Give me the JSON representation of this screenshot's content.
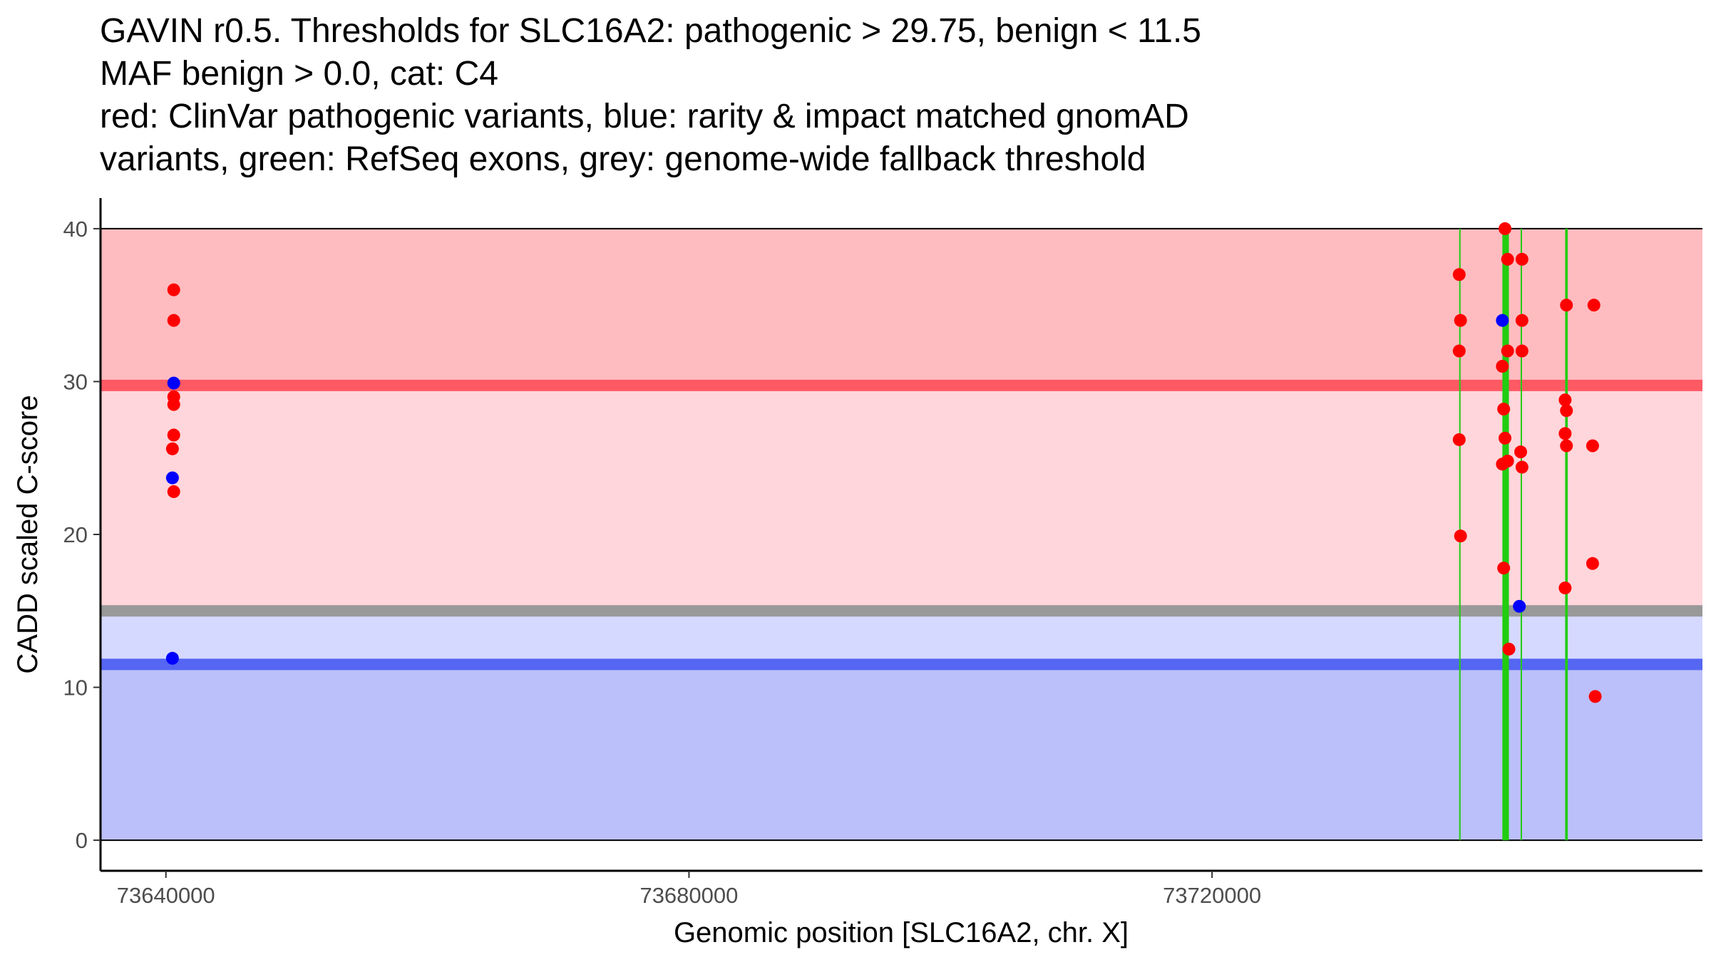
{
  "title_lines": [
    "GAVIN r0.5. Thresholds for SLC16A2: pathogenic > 29.75, benign < 11.5",
    "MAF benign > 0.0, cat: C4",
    "red: ClinVar pathogenic variants, blue: rarity & impact matched gnomAD",
    "variants, green: RefSeq exons, grey: genome-wide fallback threshold"
  ],
  "colors": {
    "patho_zone": "#ffbcc0",
    "patho_mid_zone": "#ffd6db",
    "benign_mid_zone": "#d5d9ff",
    "benign_zone": "#bbc0fa",
    "patho_line": "#ff5964",
    "benign_line": "#5566f2",
    "fallback_line": "#999999",
    "exon": "#22cc11",
    "clinvar": "#ff0000",
    "gnomad": "#0000ff"
  },
  "chart_data": {
    "type": "scatter",
    "xlabel": "Genomic position [SLC16A2, chr. X]",
    "ylabel": "CADD scaled C-score",
    "xlim": [
      73635000,
      73757500
    ],
    "ylim": [
      -2,
      42
    ],
    "x_ticks": [
      73640000,
      73680000,
      73720000
    ],
    "x_tick_labels": [
      "73640000",
      "73680000",
      "73720000"
    ],
    "y_ticks": [
      0,
      10,
      20,
      30,
      40
    ],
    "y_tick_labels": [
      "0",
      "10",
      "20",
      "30",
      "40"
    ],
    "thresholds": {
      "pathogenic": 29.75,
      "benign": 11.5,
      "fallback": 15.0,
      "max_score": 40,
      "min_score": 0
    },
    "exons": [
      {
        "start": 73738900,
        "end": 73739000
      },
      {
        "start": 73742200,
        "end": 73742700
      },
      {
        "start": 73743600,
        "end": 73743700
      },
      {
        "start": 73747000,
        "end": 73747200
      }
    ],
    "series": [
      {
        "name": "ClinVar pathogenic variants",
        "color": "#ff0000",
        "points": [
          {
            "x": 73640600,
            "y": 36
          },
          {
            "x": 73640600,
            "y": 34
          },
          {
            "x": 73640600,
            "y": 29
          },
          {
            "x": 73640600,
            "y": 28.5
          },
          {
            "x": 73640600,
            "y": 26.5
          },
          {
            "x": 73640500,
            "y": 25.6
          },
          {
            "x": 73640600,
            "y": 22.8
          },
          {
            "x": 73738900,
            "y": 37
          },
          {
            "x": 73739000,
            "y": 34
          },
          {
            "x": 73738900,
            "y": 32
          },
          {
            "x": 73738900,
            "y": 26.2
          },
          {
            "x": 73739000,
            "y": 19.9
          },
          {
            "x": 73742400,
            "y": 40
          },
          {
            "x": 73742600,
            "y": 38
          },
          {
            "x": 73742600,
            "y": 32
          },
          {
            "x": 73742200,
            "y": 31
          },
          {
            "x": 73742300,
            "y": 28.2
          },
          {
            "x": 73742400,
            "y": 26.3
          },
          {
            "x": 73742200,
            "y": 24.6
          },
          {
            "x": 73742600,
            "y": 24.8
          },
          {
            "x": 73742300,
            "y": 17.8
          },
          {
            "x": 73742700,
            "y": 12.5
          },
          {
            "x": 73743700,
            "y": 38
          },
          {
            "x": 73743700,
            "y": 34
          },
          {
            "x": 73743700,
            "y": 32
          },
          {
            "x": 73743600,
            "y": 25.4
          },
          {
            "x": 73743700,
            "y": 24.4
          },
          {
            "x": 73747100,
            "y": 35
          },
          {
            "x": 73747000,
            "y": 28.8
          },
          {
            "x": 73747100,
            "y": 28.1
          },
          {
            "x": 73747000,
            "y": 26.6
          },
          {
            "x": 73747100,
            "y": 25.8
          },
          {
            "x": 73747000,
            "y": 16.5
          },
          {
            "x": 73749200,
            "y": 35
          },
          {
            "x": 73749100,
            "y": 25.8
          },
          {
            "x": 73749100,
            "y": 18.1
          },
          {
            "x": 73749300,
            "y": 9.4
          }
        ]
      },
      {
        "name": "rarity & impact matched gnomAD variants",
        "color": "#0000ff",
        "points": [
          {
            "x": 73640600,
            "y": 29.9
          },
          {
            "x": 73640500,
            "y": 23.7
          },
          {
            "x": 73640500,
            "y": 11.9
          },
          {
            "x": 73742200,
            "y": 34
          },
          {
            "x": 73743500,
            "y": 15.3
          }
        ]
      }
    ]
  }
}
